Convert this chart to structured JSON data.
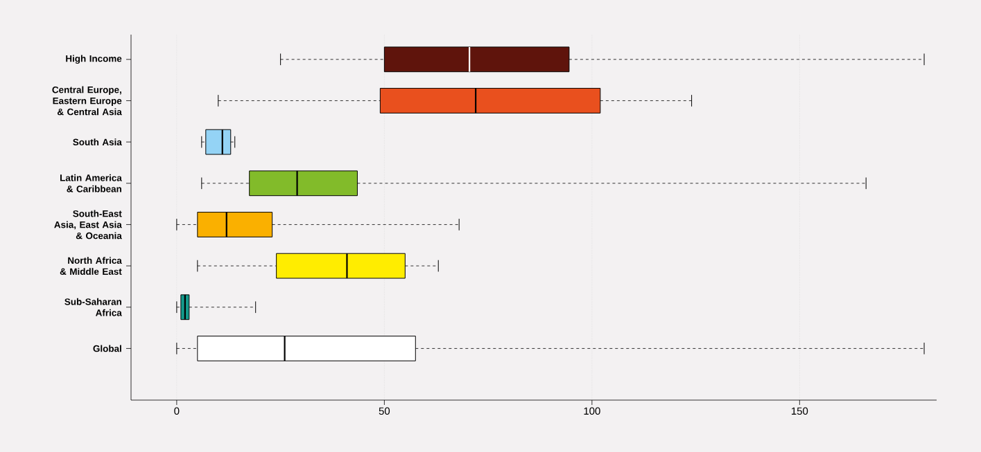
{
  "chart_data": {
    "type": "box",
    "orientation": "horizontal",
    "categories": [
      "High Income",
      "Central Europe, Eastern Europe & Central Asia",
      "South Asia",
      "Latin America & Caribbean",
      "South-East Asia, East Asia & Oceania",
      "North Africa & Middle East",
      "Sub-Saharan Africa",
      "Global"
    ],
    "boxes": [
      {
        "low": 25,
        "q1": 50,
        "median": 70.5,
        "q3": 94.5,
        "high": 180
      },
      {
        "low": 10,
        "q1": 49,
        "median": 72,
        "q3": 102,
        "high": 124
      },
      {
        "low": 6,
        "q1": 7,
        "median": 11,
        "q3": 13,
        "high": 14
      },
      {
        "low": 6,
        "q1": 17.5,
        "median": 29,
        "q3": 43.5,
        "high": 166
      },
      {
        "low": 0,
        "q1": 5,
        "median": 12,
        "q3": 23,
        "high": 68
      },
      {
        "low": 5,
        "q1": 24,
        "median": 41,
        "q3": 55,
        "high": 63
      },
      {
        "low": 0,
        "q1": 1,
        "median": 2,
        "q3": 3,
        "high": 19
      },
      {
        "low": 0,
        "q1": 5,
        "median": 26,
        "q3": 57.5,
        "high": 180
      }
    ],
    "colors": [
      "#5f140c",
      "#e9501e",
      "#94d3f5",
      "#82bb2a",
      "#fab000",
      "#ffed00",
      "#149a8c",
      "#ffffff"
    ],
    "xlim": [
      -11,
      183
    ],
    "xticks": [
      0,
      50,
      100,
      150
    ],
    "grid": "x",
    "line_style": "dashed"
  }
}
